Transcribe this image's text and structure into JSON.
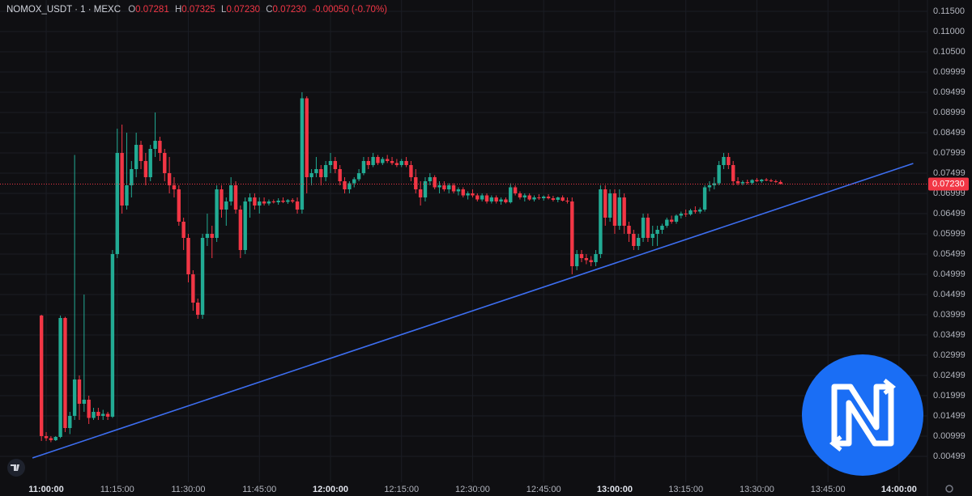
{
  "header": {
    "symbol": "NOMOX_USDT · 1 · MEXC",
    "ohlc": [
      {
        "key": "O",
        "value": "0.07281"
      },
      {
        "key": "H",
        "value": "0.07325"
      },
      {
        "key": "L",
        "value": "0.07230"
      },
      {
        "key": "C",
        "value": "0.07230"
      }
    ],
    "change": "-0.00050 (-0.70%)"
  },
  "chart_data": {
    "type": "candlestick",
    "up_color": "#22ab94",
    "down_color": "#f23645",
    "grid": true,
    "xlim": [
      "10:50:15",
      "14:06:00"
    ],
    "xticks": [
      "11:00:00",
      "11:15:00",
      "11:30:00",
      "11:45:00",
      "12:00:00",
      "12:15:00",
      "12:30:00",
      "12:45:00",
      "13:00:00",
      "13:15:00",
      "13:30:00",
      "13:45:00",
      "14:00:00"
    ],
    "ylim": [
      -0.0014,
      0.1178
    ],
    "yticks": [
      {
        "value": 0.115,
        "label": "0.11500"
      },
      {
        "value": 0.11,
        "label": "0.11000"
      },
      {
        "value": 0.105,
        "label": "0.10500"
      },
      {
        "value": 0.09999,
        "label": "0.09999"
      },
      {
        "value": 0.09499,
        "label": "0.09499"
      },
      {
        "value": 0.08999,
        "label": "0.08999"
      },
      {
        "value": 0.08499,
        "label": "0.08499"
      },
      {
        "value": 0.07999,
        "label": "0.07999"
      },
      {
        "value": 0.07499,
        "label": "0.07499"
      },
      {
        "value": 0.06999,
        "label": "0.06999"
      },
      {
        "value": 0.06499,
        "label": "0.06499"
      },
      {
        "value": 0.05999,
        "label": "0.05999"
      },
      {
        "value": 0.05499,
        "label": "0.05499"
      },
      {
        "value": 0.04999,
        "label": "0.04999"
      },
      {
        "value": 0.04499,
        "label": "0.04499"
      },
      {
        "value": 0.03999,
        "label": "0.03999"
      },
      {
        "value": 0.03499,
        "label": "0.03499"
      },
      {
        "value": 0.02999,
        "label": "0.02999"
      },
      {
        "value": 0.02499,
        "label": "0.02499"
      },
      {
        "value": 0.01999,
        "label": "0.01999"
      },
      {
        "value": 0.01499,
        "label": "0.01499"
      },
      {
        "value": 0.00999,
        "label": "0.00999"
      },
      {
        "value": 0.00499,
        "label": "0.00499"
      }
    ],
    "last_price": {
      "value": 0.0723,
      "label": "0.07230"
    },
    "trendline": {
      "x": [
        "10:57:06",
        "14:03:00"
      ],
      "values": [
        0.0046,
        0.0774
      ],
      "color": "#3d6ef0"
    },
    "x": [
      "10:59:00",
      "11:00:00",
      "11:01:00",
      "11:02:00",
      "11:03:00",
      "11:04:00",
      "11:05:00",
      "11:06:00",
      "11:07:00",
      "11:08:00",
      "11:09:00",
      "11:10:00",
      "11:11:00",
      "11:12:00",
      "11:13:00",
      "11:14:00",
      "11:15:00",
      "11:16:00",
      "11:17:00",
      "11:18:00",
      "11:19:00",
      "11:20:00",
      "11:21:00",
      "11:22:00",
      "11:23:00",
      "11:24:00",
      "11:25:00",
      "11:26:00",
      "11:27:00",
      "11:28:00",
      "11:29:00",
      "11:30:00",
      "11:31:00",
      "11:32:00",
      "11:33:00",
      "11:34:00",
      "11:35:00",
      "11:36:00",
      "11:37:00",
      "11:38:00",
      "11:39:00",
      "11:40:00",
      "11:41:00",
      "11:42:00",
      "11:43:00",
      "11:44:00",
      "11:45:00",
      "11:46:00",
      "11:47:00",
      "11:48:00",
      "11:49:00",
      "11:50:00",
      "11:51:00",
      "11:52:00",
      "11:53:00",
      "11:54:00",
      "11:55:00",
      "11:56:00",
      "11:57:00",
      "11:58:00",
      "11:59:00",
      "12:00:00",
      "12:01:00",
      "12:02:00",
      "12:03:00",
      "12:04:00",
      "12:05:00",
      "12:06:00",
      "12:07:00",
      "12:08:00",
      "12:09:00",
      "12:10:00",
      "12:11:00",
      "12:12:00",
      "12:13:00",
      "12:14:00",
      "12:15:00",
      "12:16:00",
      "12:17:00",
      "12:18:00",
      "12:19:00",
      "12:20:00",
      "12:21:00",
      "12:22:00",
      "12:23:00",
      "12:24:00",
      "12:25:00",
      "12:26:00",
      "12:27:00",
      "12:28:00",
      "12:29:00",
      "12:30:00",
      "12:31:00",
      "12:32:00",
      "12:33:00",
      "12:34:00",
      "12:35:00",
      "12:36:00",
      "12:37:00",
      "12:38:00",
      "12:39:00",
      "12:40:00",
      "12:41:00",
      "12:42:00",
      "12:43:00",
      "12:44:00",
      "12:45:00",
      "12:46:00",
      "12:47:00",
      "12:48:00",
      "12:49:00",
      "12:50:00",
      "12:51:00",
      "12:52:00",
      "12:53:00",
      "12:54:00",
      "12:55:00",
      "12:56:00",
      "12:57:00",
      "12:58:00",
      "12:59:00",
      "13:00:00",
      "13:01:00",
      "13:02:00",
      "13:03:00",
      "13:04:00",
      "13:05:00",
      "13:06:00",
      "13:07:00",
      "13:08:00",
      "13:09:00",
      "13:10:00",
      "13:11:00",
      "13:12:00",
      "13:13:00",
      "13:14:00",
      "13:15:00",
      "13:16:00",
      "13:17:00",
      "13:18:00",
      "13:19:00",
      "13:20:00",
      "13:21:00",
      "13:22:00",
      "13:23:00",
      "13:24:00",
      "13:25:00",
      "13:26:00",
      "13:27:00",
      "13:28:00",
      "13:29:00",
      "13:30:00",
      "13:31:00",
      "13:32:00",
      "13:33:00",
      "13:34:00",
      "13:35:00"
    ],
    "open": [
      0.0398,
      0.01,
      0.0095,
      0.009,
      0.0098,
      0.0392,
      0.012,
      0.015,
      0.024,
      0.018,
      0.019,
      0.0145,
      0.016,
      0.015,
      0.0155,
      0.0148,
      0.055,
      0.08,
      0.067,
      0.072,
      0.076,
      0.082,
      0.078,
      0.074,
      0.081,
      0.083,
      0.08,
      0.075,
      0.072,
      0.071,
      0.063,
      0.059,
      0.05,
      0.043,
      0.04,
      0.059,
      0.06,
      0.059,
      0.071,
      0.066,
      0.068,
      0.072,
      0.066,
      0.056,
      0.068,
      0.069,
      0.067,
      0.068,
      0.0675,
      0.068,
      0.0678,
      0.0682,
      0.0679,
      0.0683,
      0.068,
      0.066,
      0.0935,
      0.074,
      0.075,
      0.076,
      0.074,
      0.077,
      0.078,
      0.076,
      0.073,
      0.071,
      0.0725,
      0.0735,
      0.075,
      0.078,
      0.077,
      0.079,
      0.0775,
      0.0785,
      0.078,
      0.0775,
      0.077,
      0.078,
      0.077,
      0.074,
      0.071,
      0.069,
      0.073,
      0.074,
      0.0715,
      0.072,
      0.071,
      0.072,
      0.0705,
      0.071,
      0.0695,
      0.07,
      0.0695,
      0.0685,
      0.0695,
      0.068,
      0.069,
      0.068,
      0.0685,
      0.0678,
      0.0715,
      0.07,
      0.069,
      0.0695,
      0.0685,
      0.069,
      0.0688,
      0.0692,
      0.0688,
      0.0684,
      0.069,
      0.0682,
      0.068,
      0.052,
      0.055,
      0.054,
      0.0535,
      0.053,
      0.055,
      0.071,
      0.064,
      0.07,
      0.062,
      0.069,
      0.062,
      0.06,
      0.057,
      0.059,
      0.064,
      0.059,
      0.06,
      0.061,
      0.062,
      0.0635,
      0.063,
      0.0645,
      0.065,
      0.0648,
      0.0658,
      0.0655,
      0.066,
      0.0715,
      0.072,
      0.0725,
      0.077,
      0.079,
      0.077,
      0.073,
      0.0725,
      0.0728,
      0.0726,
      0.0733,
      0.073,
      0.0734,
      0.0732,
      0.073,
      0.07281
    ],
    "high": [
      0.04,
      0.011,
      0.01,
      0.01,
      0.0398,
      0.0395,
      0.016,
      0.0795,
      0.025,
      0.045,
      0.02,
      0.017,
      0.017,
      0.0165,
      0.016,
      0.056,
      0.086,
      0.087,
      0.085,
      0.078,
      0.085,
      0.083,
      0.08,
      0.082,
      0.09,
      0.084,
      0.081,
      0.079,
      0.074,
      0.072,
      0.064,
      0.06,
      0.051,
      0.044,
      0.06,
      0.065,
      0.062,
      0.072,
      0.072,
      0.069,
      0.074,
      0.073,
      0.067,
      0.069,
      0.07,
      0.07,
      0.069,
      0.069,
      0.0685,
      0.0685,
      0.0688,
      0.069,
      0.0686,
      0.0688,
      0.069,
      0.095,
      0.094,
      0.076,
      0.079,
      0.077,
      0.078,
      0.08,
      0.079,
      0.077,
      0.074,
      0.073,
      0.074,
      0.076,
      0.079,
      0.079,
      0.08,
      0.0795,
      0.079,
      0.0795,
      0.079,
      0.0785,
      0.0785,
      0.079,
      0.078,
      0.076,
      0.073,
      0.074,
      0.075,
      0.0745,
      0.073,
      0.073,
      0.0725,
      0.0725,
      0.0715,
      0.0715,
      0.0705,
      0.071,
      0.07,
      0.07,
      0.07,
      0.0695,
      0.0695,
      0.069,
      0.069,
      0.0725,
      0.072,
      0.0705,
      0.07,
      0.07,
      0.0695,
      0.0698,
      0.0695,
      0.0698,
      0.0694,
      0.0692,
      0.0695,
      0.069,
      0.069,
      0.056,
      0.056,
      0.055,
      0.0545,
      0.056,
      0.072,
      0.072,
      0.071,
      0.071,
      0.071,
      0.07,
      0.063,
      0.061,
      0.06,
      0.065,
      0.065,
      0.062,
      0.062,
      0.0625,
      0.064,
      0.0645,
      0.0648,
      0.0655,
      0.066,
      0.0662,
      0.0668,
      0.0665,
      0.072,
      0.073,
      0.074,
      0.078,
      0.08,
      0.08,
      0.078,
      0.074,
      0.0732,
      0.0734,
      0.0735,
      0.0738,
      0.0736,
      0.0738,
      0.0736,
      0.0734,
      0.07325
    ],
    "low": [
      0.0088,
      0.0088,
      0.0085,
      0.0088,
      0.0095,
      0.011,
      0.0105,
      0.014,
      0.014,
      0.016,
      0.013,
      0.014,
      0.014,
      0.014,
      0.014,
      0.0145,
      0.054,
      0.065,
      0.066,
      0.069,
      0.074,
      0.076,
      0.072,
      0.073,
      0.079,
      0.078,
      0.073,
      0.07,
      0.069,
      0.062,
      0.056,
      0.048,
      0.041,
      0.039,
      0.039,
      0.057,
      0.054,
      0.058,
      0.064,
      0.062,
      0.067,
      0.065,
      0.054,
      0.055,
      0.064,
      0.066,
      0.065,
      0.067,
      0.067,
      0.0675,
      0.0672,
      0.0676,
      0.0674,
      0.0676,
      0.065,
      0.065,
      0.07,
      0.072,
      0.074,
      0.072,
      0.073,
      0.075,
      0.075,
      0.072,
      0.07,
      0.07,
      0.0715,
      0.073,
      0.0745,
      0.076,
      0.0765,
      0.077,
      0.077,
      0.0775,
      0.077,
      0.0765,
      0.0765,
      0.0765,
      0.073,
      0.07,
      0.067,
      0.068,
      0.072,
      0.071,
      0.07,
      0.0705,
      0.07,
      0.07,
      0.0695,
      0.069,
      0.0685,
      0.069,
      0.068,
      0.068,
      0.0675,
      0.0675,
      0.0675,
      0.0672,
      0.0675,
      0.0675,
      0.0695,
      0.0685,
      0.068,
      0.0682,
      0.068,
      0.0684,
      0.0682,
      0.0685,
      0.068,
      0.0678,
      0.068,
      0.0675,
      0.05,
      0.051,
      0.053,
      0.0525,
      0.052,
      0.052,
      0.054,
      0.062,
      0.063,
      0.06,
      0.061,
      0.06,
      0.058,
      0.056,
      0.056,
      0.058,
      0.058,
      0.057,
      0.057,
      0.06,
      0.0615,
      0.0625,
      0.0625,
      0.0638,
      0.0642,
      0.0645,
      0.065,
      0.065,
      0.0655,
      0.0705,
      0.071,
      0.072,
      0.076,
      0.076,
      0.072,
      0.072,
      0.072,
      0.0722,
      0.0722,
      0.0728,
      0.0726,
      0.073,
      0.0728,
      0.0726,
      0.0723
    ],
    "close": [
      0.01,
      0.0095,
      0.009,
      0.0098,
      0.0392,
      0.012,
      0.015,
      0.024,
      0.018,
      0.019,
      0.0145,
      0.016,
      0.015,
      0.0155,
      0.0148,
      0.055,
      0.08,
      0.067,
      0.072,
      0.076,
      0.082,
      0.078,
      0.074,
      0.081,
      0.083,
      0.08,
      0.075,
      0.072,
      0.071,
      0.063,
      0.059,
      0.05,
      0.043,
      0.04,
      0.059,
      0.06,
      0.059,
      0.071,
      0.066,
      0.068,
      0.072,
      0.066,
      0.056,
      0.068,
      0.069,
      0.067,
      0.068,
      0.0675,
      0.068,
      0.0678,
      0.0682,
      0.0679,
      0.0683,
      0.068,
      0.066,
      0.0935,
      0.074,
      0.075,
      0.076,
      0.074,
      0.077,
      0.078,
      0.076,
      0.073,
      0.071,
      0.0725,
      0.0735,
      0.075,
      0.078,
      0.077,
      0.079,
      0.0775,
      0.0785,
      0.078,
      0.0775,
      0.077,
      0.078,
      0.077,
      0.074,
      0.071,
      0.069,
      0.073,
      0.074,
      0.0715,
      0.072,
      0.071,
      0.072,
      0.0705,
      0.071,
      0.0695,
      0.07,
      0.0695,
      0.0685,
      0.0695,
      0.068,
      0.069,
      0.068,
      0.0685,
      0.0678,
      0.0715,
      0.07,
      0.069,
      0.0695,
      0.0685,
      0.069,
      0.0688,
      0.0692,
      0.0688,
      0.0684,
      0.069,
      0.0682,
      0.068,
      0.052,
      0.055,
      0.054,
      0.0535,
      0.053,
      0.055,
      0.071,
      0.064,
      0.07,
      0.062,
      0.069,
      0.062,
      0.06,
      0.057,
      0.059,
      0.064,
      0.059,
      0.06,
      0.061,
      0.062,
      0.0635,
      0.063,
      0.0645,
      0.065,
      0.0648,
      0.0658,
      0.0655,
      0.066,
      0.0715,
      0.072,
      0.0725,
      0.077,
      0.079,
      0.077,
      0.073,
      0.0725,
      0.0728,
      0.0726,
      0.0733,
      0.073,
      0.0734,
      0.0732,
      0.073,
      0.0728,
      0.0723
    ]
  }
}
